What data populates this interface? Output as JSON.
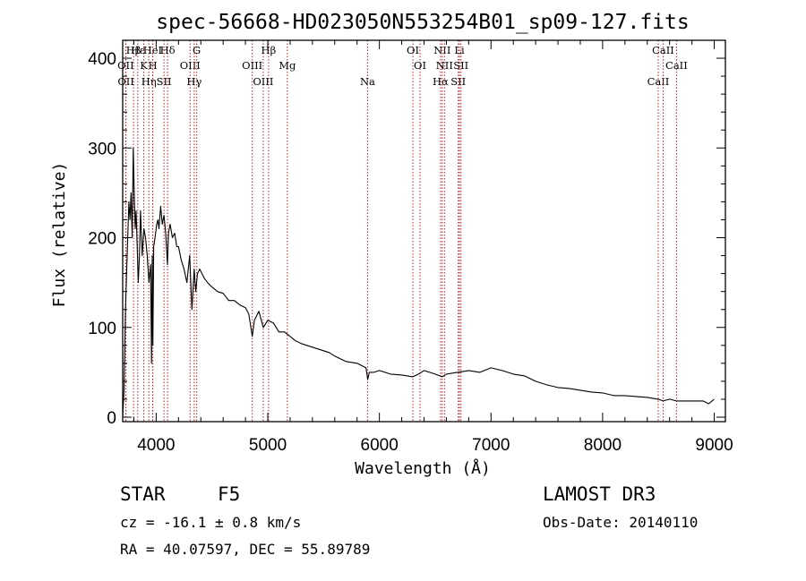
{
  "chart_data": {
    "type": "line",
    "title": "spec-56668-HD023050N553254B01_sp09-127.fits",
    "xlabel": "Wavelength (Å)",
    "ylabel": "Flux (relative)",
    "xlim": [
      3700,
      9100
    ],
    "ylim": [
      -5,
      420
    ],
    "xticks": [
      4000,
      5000,
      6000,
      7000,
      8000,
      9000
    ],
    "yticks": [
      0,
      100,
      200,
      300,
      400
    ],
    "series": [
      {
        "name": "flux",
        "x": [
          3700,
          3712,
          3725,
          3740,
          3755,
          3765,
          3775,
          3785,
          3795,
          3805,
          3812,
          3820,
          3830,
          3840,
          3850,
          3860,
          3875,
          3890,
          3905,
          3920,
          3935,
          3950,
          3958,
          3965,
          3970,
          3978,
          3990,
          4005,
          4015,
          4025,
          4040,
          4055,
          4070,
          4085,
          4101,
          4110,
          4125,
          4145,
          4165,
          4185,
          4200,
          4225,
          4250,
          4275,
          4300,
          4320,
          4340,
          4355,
          4370,
          4390,
          4410,
          4430,
          4460,
          4500,
          4550,
          4600,
          4650,
          4700,
          4750,
          4800,
          4830,
          4861,
          4880,
          4920,
          4960,
          5000,
          5050,
          5100,
          5150,
          5200,
          5250,
          5300,
          5400,
          5500,
          5550,
          5600,
          5700,
          5800,
          5880,
          5895,
          5910,
          5950,
          6000,
          6100,
          6200,
          6300,
          6350,
          6400,
          6450,
          6500,
          6563,
          6600,
          6700,
          6800,
          6900,
          7000,
          7100,
          7200,
          7300,
          7400,
          7500,
          7600,
          7700,
          7800,
          7900,
          8000,
          8100,
          8200,
          8300,
          8400,
          8498,
          8542,
          8600,
          8662,
          8700,
          8800,
          8900,
          8950,
          9000
        ],
        "y": [
          0,
          30,
          120,
          180,
          240,
          220,
          250,
          200,
          300,
          240,
          210,
          230,
          190,
          150,
          180,
          230,
          180,
          210,
          200,
          180,
          150,
          170,
          60,
          180,
          80,
          190,
          200,
          215,
          220,
          210,
          235,
          215,
          225,
          205,
          170,
          205,
          215,
          200,
          205,
          190,
          190,
          175,
          165,
          150,
          180,
          120,
          165,
          140,
          160,
          165,
          160,
          155,
          150,
          145,
          140,
          138,
          130,
          130,
          125,
          122,
          115,
          90,
          108,
          118,
          100,
          108,
          105,
          95,
          95,
          90,
          85,
          82,
          78,
          74,
          72,
          68,
          62,
          60,
          55,
          42,
          50,
          50,
          52,
          48,
          47,
          45,
          48,
          52,
          50,
          48,
          45,
          48,
          50,
          52,
          50,
          55,
          52,
          48,
          46,
          40,
          36,
          33,
          32,
          30,
          28,
          27,
          24,
          24,
          23,
          22,
          20,
          18,
          20,
          18,
          18,
          18,
          18,
          15,
          20
        ]
      }
    ],
    "spectral_lines": [
      {
        "label": "Hβ",
        "wavelength": 3797
      },
      {
        "label": "OII",
        "wavelength": 3727
      },
      {
        "label": "OII",
        "wavelength": 3729
      },
      {
        "label": "Hε",
        "wavelength": 3835
      },
      {
        "label": "K",
        "wavelength": 3889
      },
      {
        "label": "Hη",
        "wavelength": 3934
      },
      {
        "label": "HeI",
        "wavelength": 3968
      },
      {
        "label": "H",
        "wavelength": 3970
      },
      {
        "label": "SII",
        "wavelength": 4070
      },
      {
        "label": "Hδ",
        "wavelength": 4102
      },
      {
        "label": "OIII",
        "wavelength": 4304
      },
      {
        "label": "Hγ",
        "wavelength": 4341
      },
      {
        "label": "G",
        "wavelength": 4363
      },
      {
        "label": "OIII",
        "wavelength": 4861
      },
      {
        "label": "OIII",
        "wavelength": 4959
      },
      {
        "label": "Hβ",
        "wavelength": 5007
      },
      {
        "label": "Mg",
        "wavelength": 5175
      },
      {
        "label": "Na",
        "wavelength": 5894
      },
      {
        "label": "OI",
        "wavelength": 6300
      },
      {
        "label": "OI",
        "wavelength": 6364
      },
      {
        "label": "Hα",
        "wavelength": 6548
      },
      {
        "label": "NII",
        "wavelength": 6563
      },
      {
        "label": "NII",
        "wavelength": 6583
      },
      {
        "label": "SII",
        "wavelength": 6707
      },
      {
        "label": "Li",
        "wavelength": 6717
      },
      {
        "label": "SII",
        "wavelength": 6731
      },
      {
        "label": "CaII",
        "wavelength": 8498
      },
      {
        "label": "CaII",
        "wavelength": 8542
      },
      {
        "label": "CaII",
        "wavelength": 8662
      }
    ]
  },
  "info": {
    "class_label": "STAR",
    "subclass": "F5",
    "survey": "LAMOST DR3",
    "cz_line": "cz = -16.1 ± 0.8 km/s",
    "obs_date_line": "Obs-Date: 20140110",
    "coords_line": "RA =  40.07597, DEC =  55.89789"
  },
  "colors": {
    "line_marker": "#b22222",
    "spectrum": "#000000",
    "axes": "#000000"
  }
}
